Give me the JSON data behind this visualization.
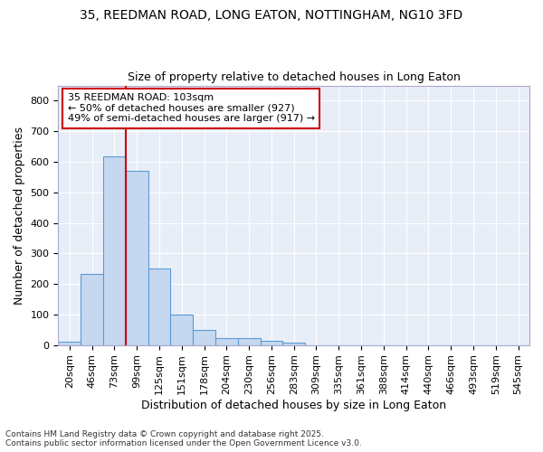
{
  "title_line1": "35, REEDMAN ROAD, LONG EATON, NOTTINGHAM, NG10 3FD",
  "title_line2": "Size of property relative to detached houses in Long Eaton",
  "xlabel": "Distribution of detached houses by size in Long Eaton",
  "ylabel": "Number of detached properties",
  "footnote": "Contains HM Land Registry data © Crown copyright and database right 2025.\nContains public sector information licensed under the Open Government Licence v3.0.",
  "bar_labels": [
    "20sqm",
    "46sqm",
    "73sqm",
    "99sqm",
    "125sqm",
    "151sqm",
    "178sqm",
    "204sqm",
    "230sqm",
    "256sqm",
    "283sqm",
    "309sqm",
    "335sqm",
    "361sqm",
    "388sqm",
    "414sqm",
    "440sqm",
    "466sqm",
    "493sqm",
    "519sqm",
    "545sqm"
  ],
  "bar_values": [
    10,
    232,
    619,
    570,
    250,
    100,
    50,
    22,
    22,
    15,
    8,
    0,
    0,
    0,
    0,
    0,
    0,
    0,
    0,
    0,
    0
  ],
  "bar_color": "#c5d8f0",
  "bar_edge_color": "#5b9bd5",
  "vline_color": "#cc0000",
  "annotation_text": "35 REEDMAN ROAD: 103sqm\n← 50% of detached houses are smaller (927)\n49% of semi-detached houses are larger (917) →",
  "annotation_box_facecolor": "#ffffff",
  "annotation_box_edgecolor": "#cc0000",
  "ylim": [
    0,
    850
  ],
  "yticks": [
    0,
    100,
    200,
    300,
    400,
    500,
    600,
    700,
    800
  ],
  "background_color": "#ffffff",
  "plot_bg_color": "#e8eef8",
  "grid_color": "#ffffff",
  "title_fontsize": 10,
  "subtitle_fontsize": 9,
  "axis_label_fontsize": 9,
  "tick_fontsize": 8,
  "annotation_fontsize": 8,
  "footnote_fontsize": 6.5
}
